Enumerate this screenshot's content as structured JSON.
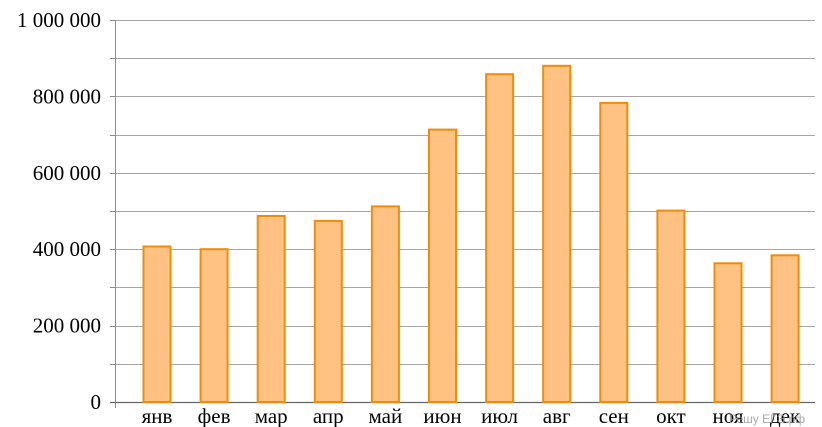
{
  "chart_data": {
    "type": "bar",
    "title": "",
    "xlabel": "",
    "ylabel": "",
    "categories": [
      "янв",
      "фев",
      "мар",
      "апр",
      "май",
      "июн",
      "июл",
      "авг",
      "сен",
      "окт",
      "ноя",
      "дек"
    ],
    "values": [
      407000,
      400000,
      487000,
      474000,
      512000,
      713000,
      858000,
      880000,
      783000,
      501000,
      363000,
      384000
    ],
    "ylim": [
      0,
      1000000
    ],
    "major_ticks": [
      0,
      200000,
      400000,
      600000,
      800000,
      1000000
    ],
    "tick_labels": [
      "0",
      "200 000",
      "400 000",
      "600 000",
      "800 000",
      "1 000 000"
    ],
    "minor_step": 100000,
    "grid": true,
    "colors": {
      "bar_fill": "#ffc283",
      "bar_stroke": "#f08c0a",
      "grid": "#a6a6a6",
      "axis": "#8c8c8c"
    }
  },
  "watermark": "Решу ЕГЭ.рф"
}
